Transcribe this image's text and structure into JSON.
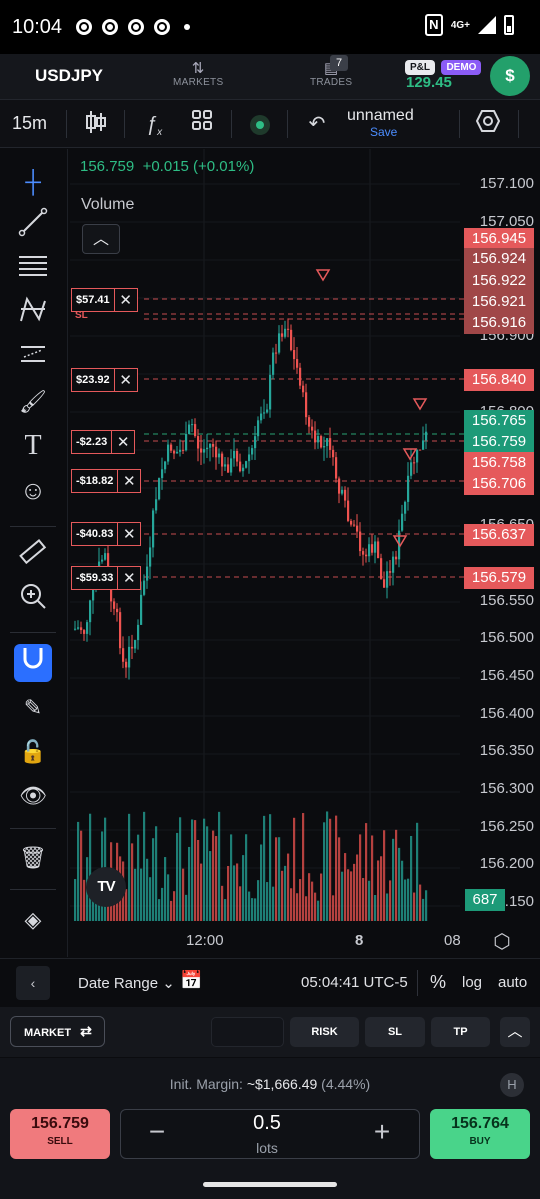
{
  "status_bar": {
    "time": "10:04",
    "network": "4G+"
  },
  "top_nav": {
    "symbol": "USDJPY",
    "markets_label": "MARKETS",
    "trades_label": "TRADES",
    "trades_count": "7",
    "pnl_label": "P&L",
    "demo_label": "DEMO",
    "pnl_value": "129.45",
    "account_icon": "$"
  },
  "toolbar": {
    "interval": "15m",
    "layout_name": "unnamed",
    "save_label": "Save"
  },
  "chart": {
    "quote_last": "156.759",
    "quote_change": "+0.015 (+0.01%)",
    "volume_label": "Volume",
    "price_axis": [
      "157.100",
      "157.050",
      "156.900",
      "156.800",
      "156.650",
      "156.550",
      "156.500",
      "156.450",
      "156.400",
      "156.350",
      "156.300",
      "156.250",
      "156.200",
      "156.150"
    ],
    "x_axis": [
      "12:00",
      "8",
      "08"
    ],
    "volume_tag": "687",
    "price_tags": [
      {
        "text": "156.945",
        "color": "#e5595b"
      },
      {
        "text": "156.924",
        "color": "#a04748"
      },
      {
        "text": "156.922",
        "color": "#a04748"
      },
      {
        "text": "156.921",
        "color": "#a04748"
      },
      {
        "text": "156.916",
        "color": "#a04748"
      },
      {
        "text": "156.840",
        "color": "#e5595b"
      },
      {
        "text": "156.765",
        "color": "#1d9a78"
      },
      {
        "text": "156.759",
        "color": "#1d9a78"
      },
      {
        "text": "156.758",
        "color": "#e5595b"
      },
      {
        "text": "156.706",
        "color": "#e5595b"
      },
      {
        "text": "156.637",
        "color": "#e5595b"
      },
      {
        "text": "156.579",
        "color": "#e5595b"
      }
    ],
    "positions": [
      {
        "pnl": "$57.41",
        "sl_label": "SL"
      },
      {
        "pnl": "$23.92"
      },
      {
        "pnl": "-$2.23"
      },
      {
        "pnl": "-$18.82"
      },
      {
        "pnl": "-$40.83"
      },
      {
        "pnl": "-$59.33"
      }
    ],
    "up_color": "#26a69a",
    "down_color": "#ef5350"
  },
  "bottom_bar": {
    "date_range_label": "Date Range",
    "clock": "05:04:41 UTC-5",
    "percent_label": "%",
    "log_label": "log",
    "auto_label": "auto"
  },
  "order_bar": {
    "market_label": "MARKET",
    "risk_label": "RISK",
    "sl_label": "SL",
    "tp_label": "TP"
  },
  "trade_panel": {
    "margin_label": "Init. Margin:",
    "margin_value": "~$1,666.49",
    "margin_pct": "(4.44%)",
    "sell_price": "156.759",
    "sell_label": "SELL",
    "buy_price": "156.764",
    "buy_label": "BUY",
    "lots_value": "0.5",
    "lots_label": "lots"
  }
}
